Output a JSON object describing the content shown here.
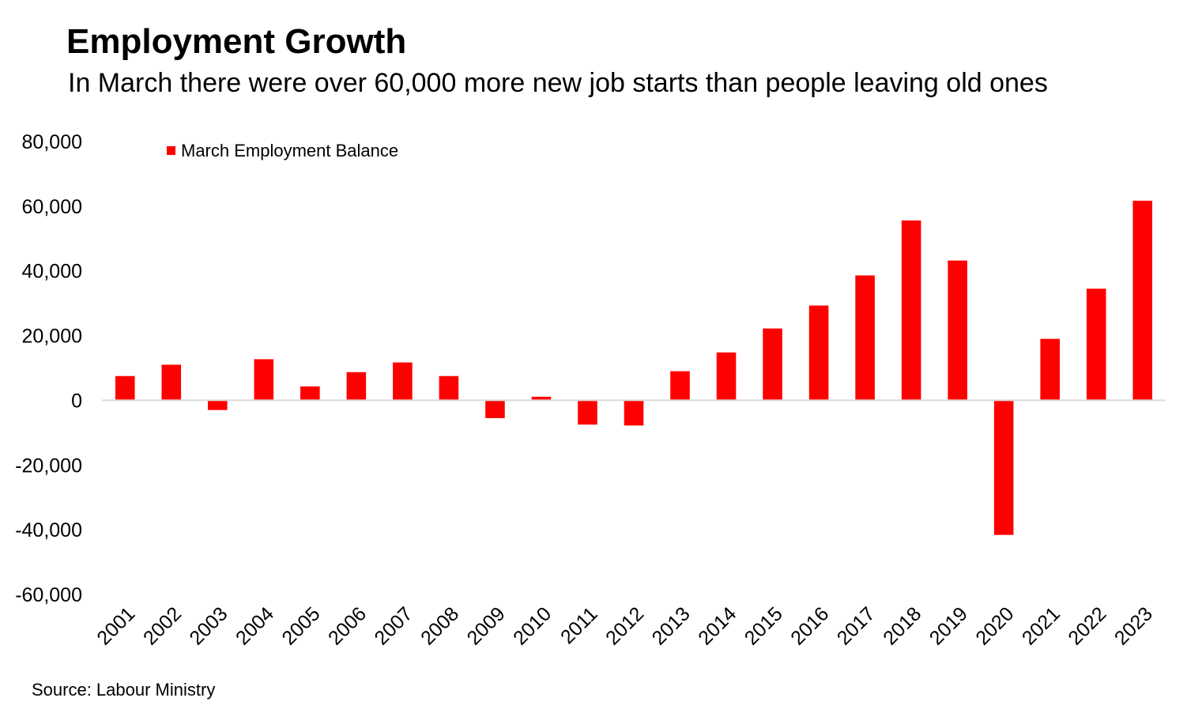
{
  "chart_data": {
    "type": "bar",
    "title": "Employment Growth",
    "subtitle": "In March there were over 60,000 more new job starts than people leaving old ones",
    "source": "Source: Labour Ministry",
    "categories": [
      "2001",
      "2002",
      "2003",
      "2004",
      "2005",
      "2006",
      "2007",
      "2008",
      "2009",
      "2010",
      "2011",
      "2012",
      "2013",
      "2014",
      "2015",
      "2016",
      "2017",
      "2018",
      "2019",
      "2020",
      "2021",
      "2022",
      "2023"
    ],
    "series": [
      {
        "name": "March Employment Balance",
        "color": "#ff0000",
        "values": [
          7500,
          11000,
          -3000,
          12700,
          4300,
          8700,
          11700,
          7500,
          -5500,
          1100,
          -7500,
          -7800,
          9000,
          14800,
          22200,
          29300,
          38600,
          55600,
          43200,
          -41600,
          19000,
          34500,
          61700
        ]
      }
    ],
    "ylim": [
      -60000,
      80000
    ],
    "yticks": [
      80000,
      60000,
      40000,
      20000,
      0,
      -20000,
      -40000,
      -60000
    ],
    "ytick_labels": [
      "80,000",
      "60,000",
      "40,000",
      "20,000",
      "0",
      "-20,000",
      "-40,000",
      "-60,000"
    ],
    "xlabel": "",
    "ylabel": "",
    "grid": false,
    "legend_position": "top-left"
  }
}
